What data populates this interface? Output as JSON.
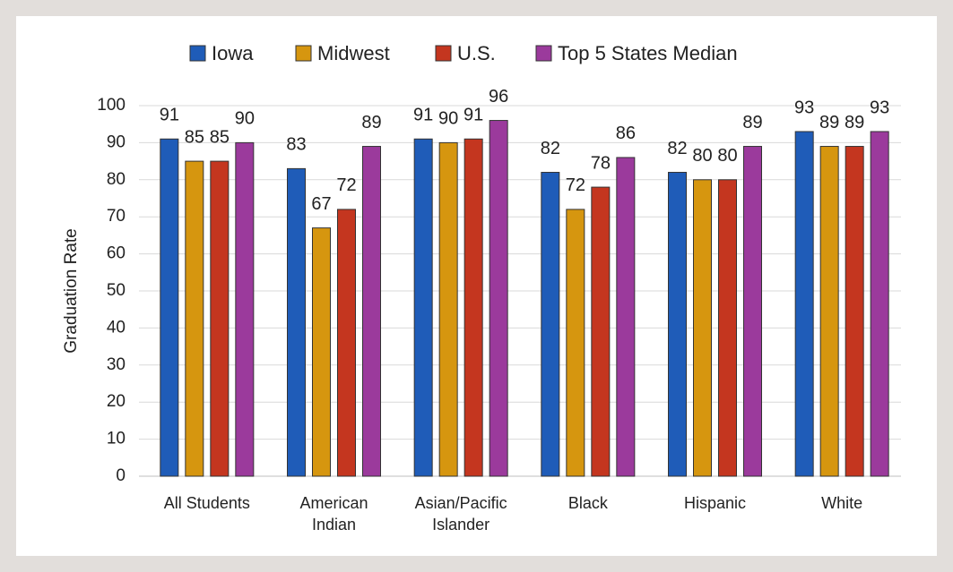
{
  "chart_data": {
    "type": "bar",
    "categories": [
      "All Students",
      "American Indian",
      "Asian/Pacific Islander",
      "Black",
      "Hispanic",
      "White"
    ],
    "series": [
      {
        "name": "Iowa",
        "color": "#1f5cb8",
        "values": [
          91,
          83,
          91,
          82,
          82,
          93
        ]
      },
      {
        "name": "Midwest",
        "color": "#d6960f",
        "values": [
          85,
          67,
          90,
          72,
          80,
          89
        ]
      },
      {
        "name": "U.S.",
        "color": "#c4361f",
        "values": [
          85,
          72,
          91,
          78,
          80,
          89
        ]
      },
      {
        "name": "Top 5 States Median",
        "color": "#9b3a9c",
        "values": [
          90,
          89,
          96,
          86,
          89,
          93
        ]
      }
    ],
    "y_label": "Graduation Rate",
    "ylim": [
      0,
      100
    ],
    "yticks": [
      0,
      10,
      20,
      30,
      40,
      50,
      60,
      70,
      80,
      90,
      100
    ],
    "grid": true
  }
}
